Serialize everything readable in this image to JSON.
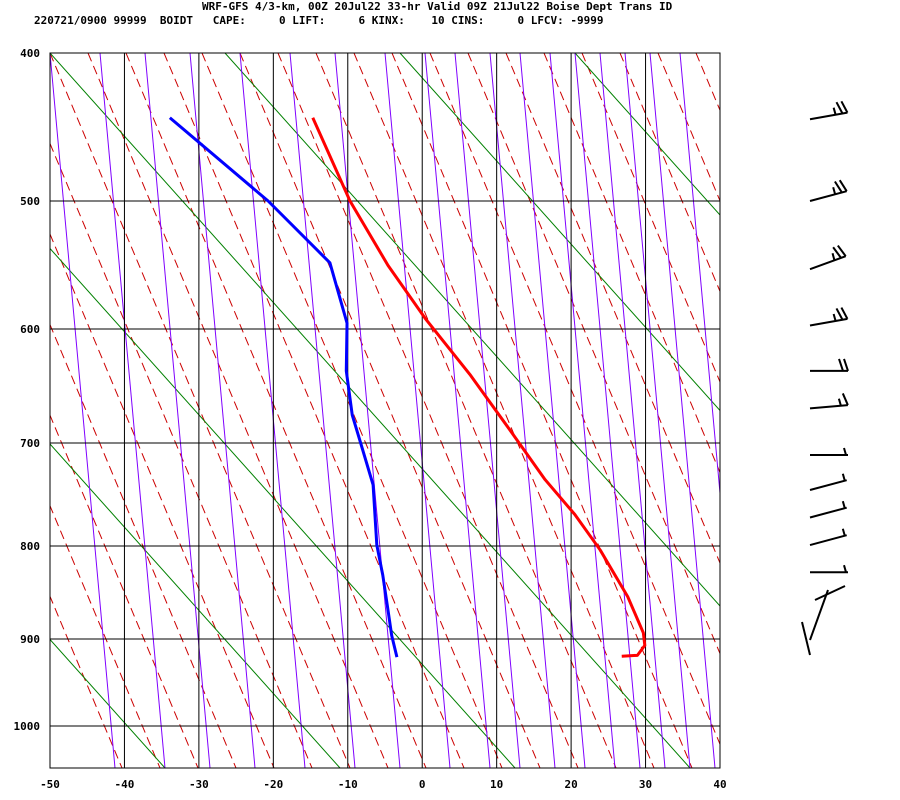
{
  "header": {
    "title": "WRF-GFS 4/3-km, 00Z 20Jul22 33-hr Valid 09Z 21Jul22 Boise Dept Trans ID",
    "indices": "220721/0900 99999  BOIDT   CAPE:     0 LIFT:     6 KINX:    10 CINS:     0 LFCV: -9999"
  },
  "chart_data": {
    "type": "line",
    "title": "WRF-GFS 4/3-km, 00Z 20Jul22 33-hr Valid 09Z 21Jul22 Boise Dept Trans ID",
    "y_scale": "log-pressure",
    "ylim": [
      400,
      1050
    ],
    "xlim": [
      -50,
      40
    ],
    "y_ticks": [
      400,
      500,
      600,
      700,
      800,
      900,
      1000
    ],
    "x_ticks": [
      -50,
      -40,
      -30,
      -20,
      -10,
      0,
      10,
      20,
      30,
      40
    ],
    "grid": true,
    "colors": {
      "temperature": "#ff0000",
      "dewpoint": "#0000ff",
      "isotherm": "#8000ff",
      "dry_adiabat": "#008000",
      "moist_adiabat": "#cc0000",
      "grid": "#000000"
    },
    "series": [
      {
        "key": "temperature",
        "pressure": [
          441,
          500,
          548,
          591,
          638,
          688,
          734,
          768,
          804,
          853,
          893,
          907,
          918,
          919
        ],
        "values": [
          -14.7,
          -9.7,
          -4.6,
          0.4,
          6.4,
          11.8,
          16.5,
          20.5,
          23.9,
          27.6,
          29.7,
          29.9,
          28.9,
          26.8
        ]
      },
      {
        "key": "dewpoint",
        "pressure": [
          441,
          500,
          546,
          595,
          635,
          674,
          697,
          739,
          799,
          830,
          862,
          896,
          920
        ],
        "values": [
          -33.9,
          -20.7,
          -12.4,
          -10.1,
          -10.2,
          -9.4,
          -8.4,
          -6.6,
          -6.1,
          -5.3,
          -4.7,
          -4.1,
          -3.4
        ]
      }
    ],
    "wind_barbs": [
      {
        "pressure": 442,
        "direction": 260,
        "speed": 25
      },
      {
        "pressure": 500,
        "direction": 255,
        "speed": 25
      },
      {
        "pressure": 551,
        "direction": 250,
        "speed": 25
      },
      {
        "pressure": 597,
        "direction": 260,
        "speed": 25
      },
      {
        "pressure": 635,
        "direction": 270,
        "speed": 20
      },
      {
        "pressure": 668,
        "direction": 265,
        "speed": 15
      },
      {
        "pressure": 711,
        "direction": 270,
        "speed": 5
      },
      {
        "pressure": 744,
        "direction": 255,
        "speed": 5
      },
      {
        "pressure": 771,
        "direction": 255,
        "speed": 5
      },
      {
        "pressure": 799,
        "direction": 255,
        "speed": 5
      },
      {
        "pressure": 827,
        "direction": 270,
        "speed": 5
      }
    ]
  }
}
